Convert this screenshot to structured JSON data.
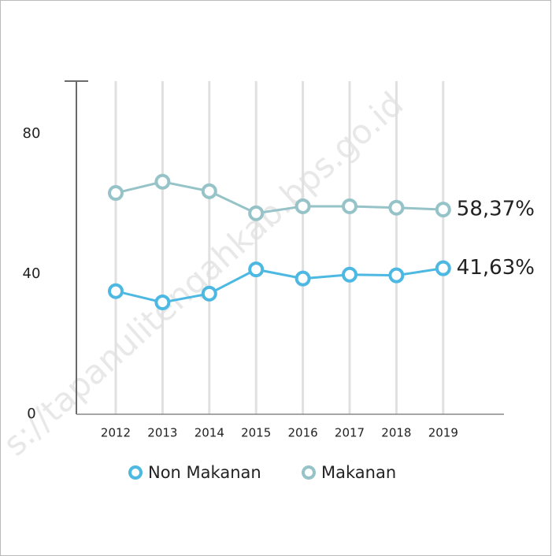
{
  "chart_data": {
    "type": "line",
    "categories": [
      "2012",
      "2013",
      "2014",
      "2015",
      "2016",
      "2017",
      "2018",
      "2019"
    ],
    "series": [
      {
        "name": "Non Makanan",
        "color": "#4db8e2",
        "values": [
          35.1,
          31.9,
          34.4,
          41.3,
          38.7,
          39.8,
          39.6,
          41.63
        ],
        "value_labels": [
          null,
          null,
          null,
          null,
          null,
          null,
          null,
          "41,63%"
        ]
      },
      {
        "name": "Makanan",
        "color": "#96c3c8",
        "values": [
          63.1,
          66.3,
          63.6,
          57.3,
          59.3,
          59.3,
          58.9,
          58.37
        ],
        "value_labels": [
          null,
          null,
          null,
          null,
          null,
          null,
          null,
          "58,37%"
        ]
      }
    ],
    "ylim": [
      0,
      95
    ],
    "yticks": [
      0,
      40,
      80
    ],
    "grid": true,
    "watermark": "s://tapanulitengahkab.bps.go.id"
  }
}
